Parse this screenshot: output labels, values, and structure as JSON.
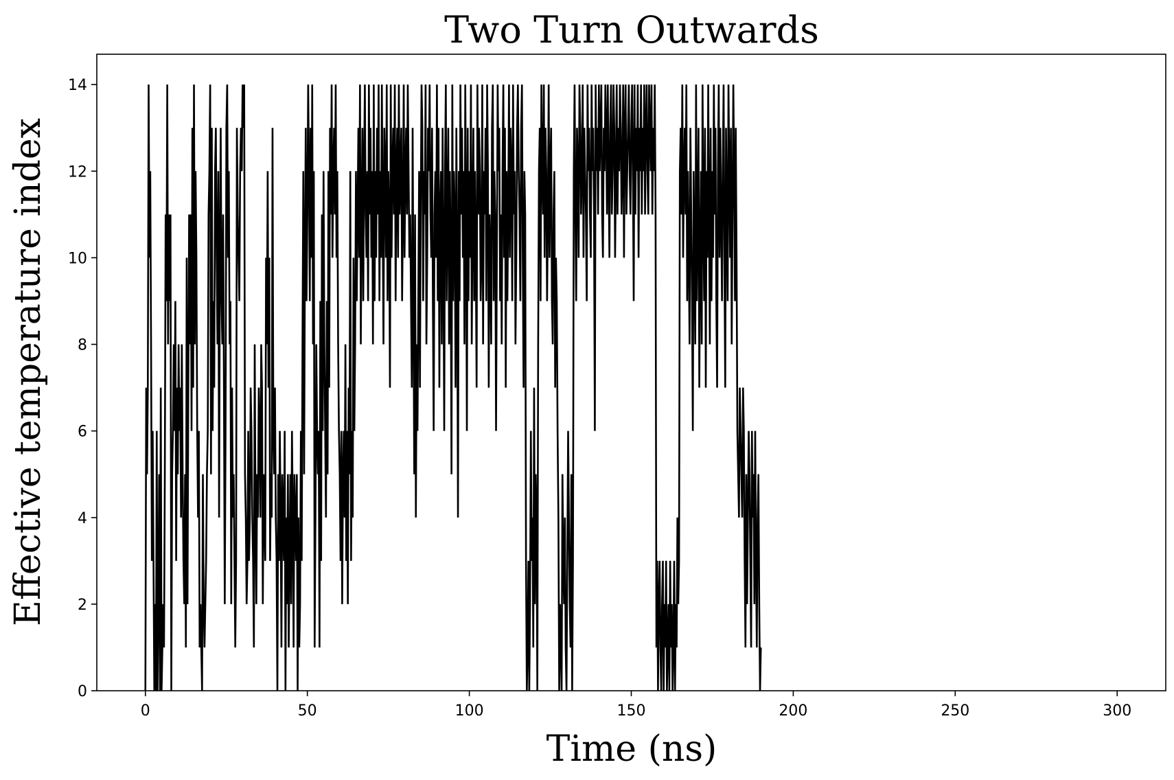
{
  "chart_data": {
    "type": "line",
    "title": "Two Turn Outwards",
    "xlabel": "Time (ns)",
    "ylabel": "Effective temperature index",
    "xlim": [
      -15,
      315
    ],
    "ylim": [
      0,
      14.7
    ],
    "xticks": [
      0,
      50,
      100,
      150,
      200,
      250,
      300
    ],
    "yticks": [
      0,
      2,
      4,
      6,
      8,
      10,
      12,
      14
    ],
    "grid": false,
    "legend": "none",
    "line_color": "#000000",
    "series": [
      {
        "dt": 0.25,
        "values": [
          0,
          7,
          5,
          7,
          14,
          10,
          12,
          8,
          3,
          6,
          3,
          0,
          2,
          0,
          6,
          0,
          2,
          5,
          0,
          7,
          0,
          1,
          2,
          1,
          5,
          11,
          9,
          14,
          8,
          11,
          9,
          11,
          0,
          5,
          6,
          8,
          6,
          9,
          3,
          7,
          5,
          8,
          6,
          7,
          4,
          8,
          5,
          3,
          2,
          5,
          1,
          10,
          2,
          7,
          11,
          8,
          11,
          6,
          13,
          7,
          14,
          8,
          12,
          10,
          6,
          4,
          6,
          1,
          2,
          1,
          0,
          5,
          2,
          1,
          2,
          3,
          5,
          6,
          11,
          12,
          14,
          5,
          13,
          6,
          9,
          7,
          12,
          13,
          10,
          8,
          12,
          4,
          10,
          13,
          9,
          8,
          11,
          7,
          2,
          6,
          13,
          14,
          10,
          12,
          8,
          9,
          2,
          7,
          4,
          5,
          3,
          1,
          3,
          13,
          11,
          10,
          9,
          12,
          13,
          12,
          14,
          13,
          14,
          5,
          4,
          2,
          3,
          6,
          3,
          4,
          7,
          6,
          4,
          3,
          1,
          8,
          4,
          2,
          5,
          4,
          7,
          6,
          4,
          8,
          7,
          2,
          5,
          4,
          3,
          10,
          8,
          12,
          7,
          10,
          3,
          5,
          4,
          13,
          6,
          5,
          7,
          4,
          3,
          0,
          5,
          3,
          6,
          4,
          1,
          5,
          4,
          3,
          6,
          0,
          4,
          2,
          5,
          1,
          3,
          5,
          2,
          6,
          4,
          1,
          5,
          4,
          3,
          5,
          0,
          4,
          1,
          2,
          6,
          3,
          8,
          12,
          5,
          10,
          13,
          9,
          11,
          14,
          12,
          9,
          13,
          10,
          14,
          8,
          12,
          1,
          4,
          8,
          6,
          5,
          6,
          1,
          9,
          3,
          11,
          6,
          12,
          8,
          6,
          4,
          9,
          5,
          12,
          7,
          13,
          11,
          14,
          10,
          12,
          13,
          11,
          14,
          10,
          12,
          8,
          6,
          5,
          3,
          6,
          2,
          5,
          6,
          4,
          8,
          3,
          6,
          2,
          7,
          5,
          12,
          3,
          6,
          4,
          10,
          6,
          8,
          12,
          9,
          11,
          13,
          10,
          14,
          8,
          11,
          13,
          9,
          12,
          14,
          11,
          10,
          12,
          9,
          14,
          11,
          13,
          10,
          12,
          8,
          14,
          9,
          12,
          10,
          13,
          11,
          14,
          9,
          12,
          10,
          14,
          11,
          8,
          13,
          12,
          10,
          14,
          9,
          12,
          11,
          7,
          14,
          10,
          12,
          13,
          11,
          14,
          9,
          12,
          13,
          10,
          14,
          11,
          12,
          13,
          9,
          11,
          14,
          10,
          12,
          13,
          11,
          14,
          12,
          10,
          11,
          9,
          7,
          13,
          9,
          5,
          11,
          4,
          8,
          6,
          9,
          12,
          7,
          11,
          14,
          13,
          9,
          12,
          11,
          14,
          8,
          10,
          13,
          12,
          14,
          11,
          10,
          13,
          9,
          6,
          11,
          12,
          10,
          14,
          9,
          13,
          7,
          11,
          12,
          8,
          13,
          10,
          6,
          12,
          14,
          9,
          11,
          13,
          8,
          12,
          10,
          5,
          14,
          9,
          12,
          11,
          7,
          13,
          10,
          4,
          12,
          9,
          14,
          11,
          13,
          10,
          12,
          8,
          14,
          11,
          6,
          13,
          9,
          12,
          10,
          14,
          8,
          11,
          13,
          9,
          12,
          10,
          7,
          14,
          11,
          13,
          12,
          9,
          10,
          14,
          8,
          12,
          11,
          13,
          9,
          14,
          12,
          7,
          11,
          10,
          8,
          13,
          14,
          9,
          12,
          11,
          6,
          10,
          14,
          12,
          13,
          9,
          11,
          8,
          12,
          14,
          10,
          13,
          7,
          12,
          9,
          11,
          14,
          10,
          13,
          12,
          9,
          14,
          11,
          12,
          8,
          10,
          13,
          14,
          12,
          11,
          9,
          13,
          14,
          10,
          7,
          12,
          11,
          3,
          0,
          1,
          3,
          0,
          2,
          6,
          3,
          4,
          1,
          7,
          2,
          5,
          4,
          0,
          8,
          12,
          13,
          9,
          14,
          12,
          11,
          14,
          10,
          13,
          12,
          9,
          11,
          14,
          10,
          12,
          13,
          9,
          8,
          11,
          12,
          7,
          10,
          9,
          6,
          4,
          0,
          2,
          1,
          0,
          5,
          3,
          2,
          4,
          1,
          0,
          3,
          6,
          4,
          2,
          1,
          5,
          0,
          3,
          12,
          14,
          11,
          9,
          13,
          12,
          10,
          14,
          13,
          11,
          12,
          14,
          10,
          13,
          12,
          11,
          9,
          14,
          12,
          13,
          11,
          10,
          14,
          12,
          13,
          11,
          6,
          14,
          12,
          13,
          11,
          14,
          12,
          13,
          14,
          11,
          10,
          13,
          12,
          14,
          13,
          11,
          14,
          12,
          10,
          13,
          14,
          11,
          12,
          14,
          13,
          10,
          12,
          14,
          11,
          13,
          12,
          14,
          13,
          11,
          12,
          14,
          10,
          13,
          14,
          11,
          12,
          13,
          14,
          12,
          11,
          13,
          14,
          12,
          9,
          14,
          11,
          13,
          12,
          14,
          10,
          13,
          12,
          14,
          11,
          13,
          12,
          14,
          11,
          13,
          14,
          12,
          11,
          14,
          13,
          12,
          14,
          11,
          13,
          12,
          14,
          11,
          1,
          3,
          0,
          2,
          3,
          1,
          0,
          2,
          3,
          0,
          2,
          1,
          3,
          0,
          1,
          2,
          0,
          3,
          1,
          2,
          0,
          1,
          3,
          0,
          2,
          1,
          4,
          2,
          3,
          12,
          13,
          11,
          14,
          10,
          12,
          13,
          11,
          14,
          9,
          12,
          10,
          8,
          13,
          11,
          9,
          6,
          12,
          10,
          8,
          14,
          9,
          11,
          13,
          7,
          10,
          12,
          8,
          14,
          11,
          9,
          13,
          7,
          12,
          10,
          14,
          11,
          8,
          13,
          9,
          12,
          10,
          14,
          11,
          13,
          9,
          7,
          12,
          14,
          10,
          13,
          11,
          9,
          12,
          14,
          10,
          7,
          13,
          11,
          9,
          14,
          12,
          10,
          13,
          8,
          11,
          14,
          12,
          9,
          13,
          10,
          6,
          5,
          4,
          7,
          6,
          5,
          4,
          7,
          6,
          3,
          1,
          5,
          2,
          4,
          6,
          5,
          3,
          1,
          6,
          4,
          5,
          2,
          6,
          3,
          1,
          4,
          5,
          2,
          0,
          1
        ]
      }
    ]
  }
}
